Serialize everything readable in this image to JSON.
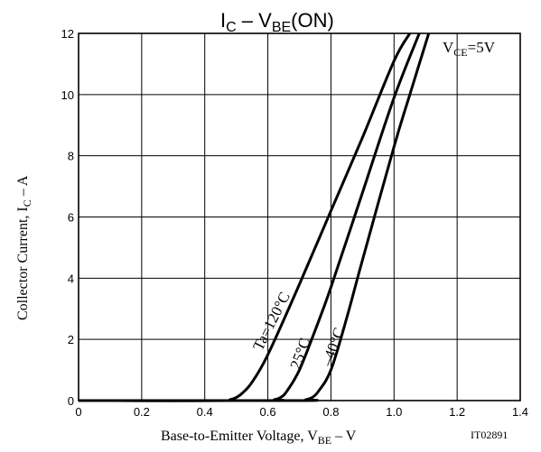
{
  "chart_data": {
    "type": "line",
    "title_main": "I",
    "title_sub1": "C",
    "title_mid": " – V",
    "title_sub2": "BE",
    "title_end": "(ON)",
    "xlabel_main": "Base-to-Emitter Voltage, V",
    "xlabel_sub": "BE",
    "xlabel_end": "  –  V",
    "ylabel_main": "Collector Current, I",
    "ylabel_sub": "C",
    "ylabel_end": "  –  A",
    "xlim": [
      0,
      1.4
    ],
    "ylim": [
      0,
      12
    ],
    "x_ticks": [
      0,
      0.2,
      0.4,
      0.6,
      0.8,
      1.0,
      1.2,
      1.4
    ],
    "x_tick_labels": [
      "0",
      "0.2",
      "0.4",
      "0.6",
      "0.8",
      "1.0",
      "1.2",
      "1.4"
    ],
    "y_ticks": [
      0,
      2,
      4,
      6,
      8,
      10,
      12
    ],
    "y_tick_labels": [
      "0",
      "2",
      "4",
      "6",
      "8",
      "10",
      "12"
    ],
    "grid": true,
    "condition_main": "V",
    "condition_sub": "CE",
    "condition_end": "=5V",
    "figure_code": "IT02891",
    "series": [
      {
        "name": "Ta=120°C",
        "x": [
          0.0,
          0.45,
          0.48,
          0.5,
          0.52,
          0.55,
          0.6,
          0.7,
          0.8,
          0.9,
          1.0,
          1.05
        ],
        "y": [
          0.0,
          0.0,
          0.03,
          0.1,
          0.25,
          0.6,
          1.5,
          3.8,
          6.2,
          8.6,
          11.1,
          12.0
        ]
      },
      {
        "name": "25°C",
        "x": [
          0.0,
          0.6,
          0.62,
          0.64,
          0.66,
          0.7,
          0.75,
          0.8,
          0.9,
          1.0,
          1.08
        ],
        "y": [
          0.0,
          0.0,
          0.03,
          0.1,
          0.3,
          1.0,
          2.3,
          3.7,
          6.8,
          9.9,
          12.0
        ]
      },
      {
        "name": "–40°C",
        "x": [
          0.0,
          0.7,
          0.72,
          0.74,
          0.76,
          0.8,
          0.85,
          0.9,
          1.0,
          1.05,
          1.11
        ],
        "y": [
          0.0,
          0.0,
          0.03,
          0.1,
          0.3,
          1.0,
          2.7,
          4.6,
          8.3,
          10.0,
          12.0
        ]
      }
    ],
    "curve_labels": [
      {
        "text": "Ta=120°C",
        "x": 0.58,
        "y": 1.6,
        "angle": -63
      },
      {
        "text": "25°C",
        "x": 0.7,
        "y": 1.0,
        "angle": -70
      },
      {
        "text": "–40°C",
        "x": 0.8,
        "y": 1.1,
        "angle": -70
      }
    ]
  }
}
